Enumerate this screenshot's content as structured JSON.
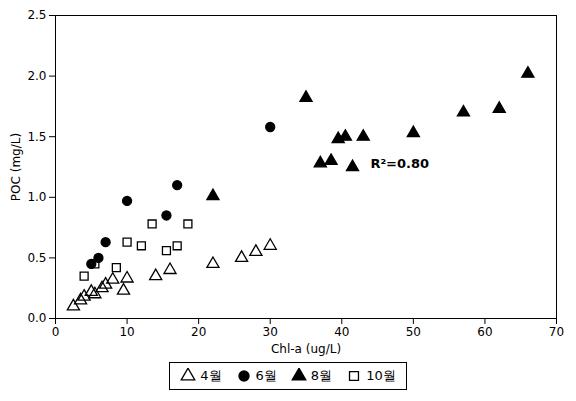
{
  "chart_data": {
    "type": "scatter",
    "xlabel": "Chl-a (ug/L)",
    "ylabel": "POC (mg/L)",
    "xlim": [
      0,
      70
    ],
    "ylim": [
      0,
      2.5
    ],
    "xticks": [
      0,
      10,
      20,
      30,
      40,
      50,
      60,
      70
    ],
    "yticks": [
      {
        "value": 0,
        "label": "0.0"
      },
      0.5,
      {
        "value": 1,
        "label": "1.0"
      },
      1.5,
      {
        "value": 2,
        "label": "2.0"
      },
      2.5
    ],
    "grid": false,
    "legend": "bottom",
    "annotations": [
      {
        "text": "R²=0.80",
        "x": 44,
        "y": 1.28
      }
    ],
    "series": [
      {
        "name": "4월",
        "color": "#000000",
        "marker": "open_triangle",
        "x": [
          2.5,
          3.5,
          4.0,
          5.0,
          5.5,
          6.5,
          7.0,
          8.0,
          9.5,
          10.0,
          14.0,
          16.0,
          22.0,
          26.0,
          28.0,
          30.0
        ],
        "values": [
          0.1,
          0.15,
          0.18,
          0.22,
          0.2,
          0.25,
          0.28,
          0.32,
          0.23,
          0.33,
          0.35,
          0.4,
          0.45,
          0.5,
          0.55,
          0.6
        ]
      },
      {
        "name": "6월",
        "color": "#000000",
        "marker": "circle",
        "x": [
          5.0,
          6.0,
          7.0,
          10.0,
          15.5,
          17.0,
          30.0
        ],
        "values": [
          0.45,
          0.5,
          0.63,
          0.97,
          0.85,
          1.1,
          1.58
        ]
      },
      {
        "name": "8월",
        "color": "#000000",
        "marker": "triangle",
        "x": [
          22.0,
          35.0,
          37.0,
          38.5,
          39.5,
          40.5,
          41.5,
          43.0,
          50.0,
          57.0,
          62.0,
          66.0
        ],
        "values": [
          1.01,
          1.82,
          1.28,
          1.3,
          1.48,
          1.5,
          1.25,
          1.5,
          1.53,
          1.7,
          1.73,
          2.02
        ]
      },
      {
        "name": "10월",
        "color": "#000000",
        "marker": "open_square",
        "x": [
          4.0,
          5.5,
          8.5,
          10.0,
          12.0,
          13.5,
          15.5,
          17.0,
          18.5
        ],
        "values": [
          0.35,
          0.45,
          0.42,
          0.63,
          0.6,
          0.78,
          0.56,
          0.6,
          0.78
        ]
      }
    ]
  }
}
